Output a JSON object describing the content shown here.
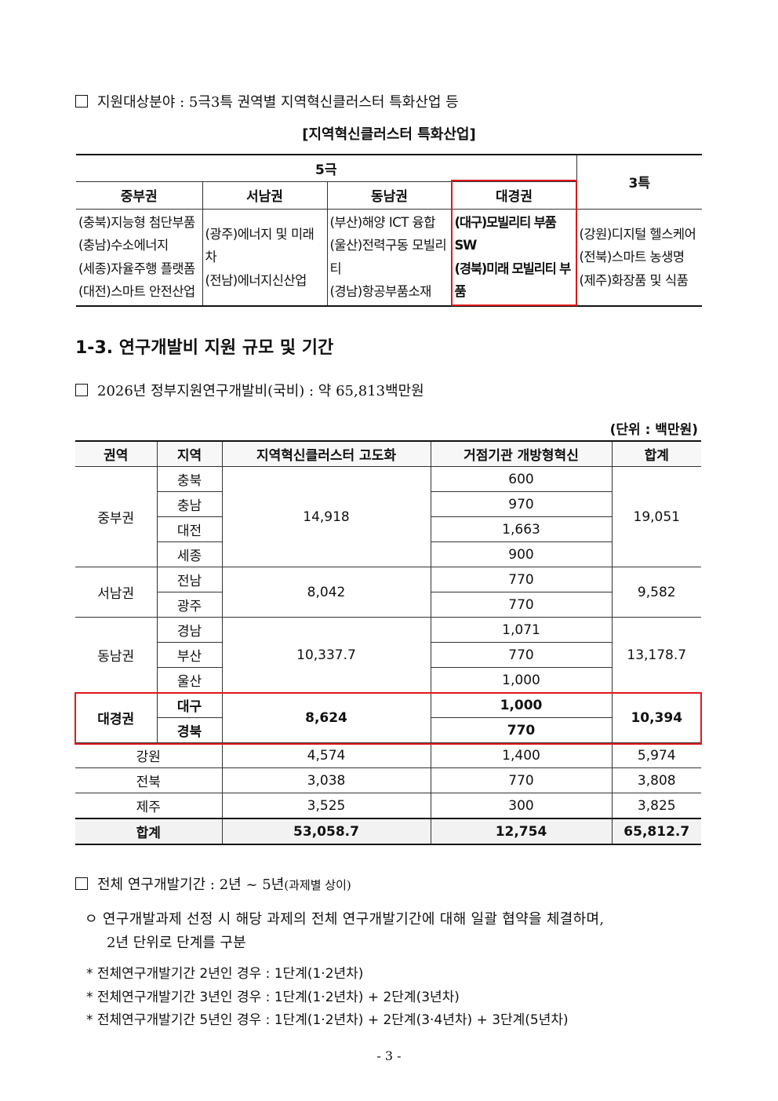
{
  "section1": {
    "bullet": "지원대상분야 : 5극3특 권역별 지역혁신클러스터 특화산업 등",
    "table_title": "[지역혁신클러스터 특화산업]",
    "table": {
      "group_5": "5극",
      "group_3": "3특",
      "regions": [
        "중부권",
        "서남권",
        "동남권",
        "대경권"
      ],
      "cells": [
        [
          "(충북)지능형 첨단부품",
          "(충남)수소에너지",
          "(세종)자율주행 플랫폼",
          "(대전)스마트 안전산업"
        ],
        [
          "(광주)에너지 및 미래차",
          "(전남)에너지신산업"
        ],
        [
          "(부산)해양 ICT 융합",
          "(울산)전력구동 모빌리티",
          "(경남)항공부품소재"
        ],
        [
          "(대구)모빌리티 부품SW",
          "(경북)미래 모빌리티 부품"
        ],
        [
          "(강원)디지털 헬스케어",
          "(전북)스마트 농생명",
          "(제주)화장품 및 식품"
        ]
      ],
      "highlight_color": "#e0191c"
    }
  },
  "section2": {
    "heading": "1-3. 연구개발비 지원 규모 및 기간",
    "bullet": "2026년 정부지원연구개발비(국비) : 약 65,813백만원",
    "unit": "(단위 : 백만원)",
    "headers": [
      "권역",
      "지역",
      "지역혁신클러스터 고도화",
      "거점기관 개방형혁신",
      "합계"
    ],
    "groups": [
      {
        "region": "중부권",
        "cluster": "14,918",
        "total": "19,051",
        "rows": [
          {
            "area": "충북",
            "hub": "600"
          },
          {
            "area": "충남",
            "hub": "970"
          },
          {
            "area": "대전",
            "hub": "1,663"
          },
          {
            "area": "세종",
            "hub": "900"
          }
        ]
      },
      {
        "region": "서남권",
        "cluster": "8,042",
        "total": "9,582",
        "rows": [
          {
            "area": "전남",
            "hub": "770"
          },
          {
            "area": "광주",
            "hub": "770"
          }
        ]
      },
      {
        "region": "동남권",
        "cluster": "10,337.7",
        "total": "13,178.7",
        "rows": [
          {
            "area": "경남",
            "hub": "1,071"
          },
          {
            "area": "부산",
            "hub": "770"
          },
          {
            "area": "울산",
            "hub": "1,000"
          }
        ]
      },
      {
        "region": "대경권",
        "cluster": "8,624",
        "total": "10,394",
        "rows": [
          {
            "area": "대구",
            "hub": "1,000"
          },
          {
            "area": "경북",
            "hub": "770"
          }
        ]
      }
    ],
    "singles": [
      {
        "area": "강원",
        "cluster": "4,574",
        "hub": "1,400",
        "total": "5,974"
      },
      {
        "area": "전북",
        "cluster": "3,038",
        "hub": "770",
        "total": "3,808"
      },
      {
        "area": "제주",
        "cluster": "3,525",
        "hub": "300",
        "total": "3,825"
      }
    ],
    "sum": {
      "label": "합계",
      "cluster": "53,058.7",
      "hub": "12,754",
      "total": "65,812.7"
    }
  },
  "section3": {
    "bullet_main": "전체 연구개발기간 : 2년 ~ 5년",
    "bullet_note": "(과제별 상이)",
    "circle_line1": "ㅇ 연구개발과제 선정 시 해당 과제의 전체 연구개발기간에 대해 일괄 협약을 체결하며,",
    "circle_line2": "2년 단위로 단계를 구분",
    "notes": [
      "* 전체연구개발기간 2년인 경우 : 1단계(1·2년차)",
      "* 전체연구개발기간 3년인 경우 : 1단계(1·2년차) + 2단계(3년차)",
      "* 전체연구개발기간 5년인 경우 : 1단계(1·2년차) + 2단계(3·4년차) + 3단계(5년차)"
    ]
  },
  "page_number": "- 3 -"
}
